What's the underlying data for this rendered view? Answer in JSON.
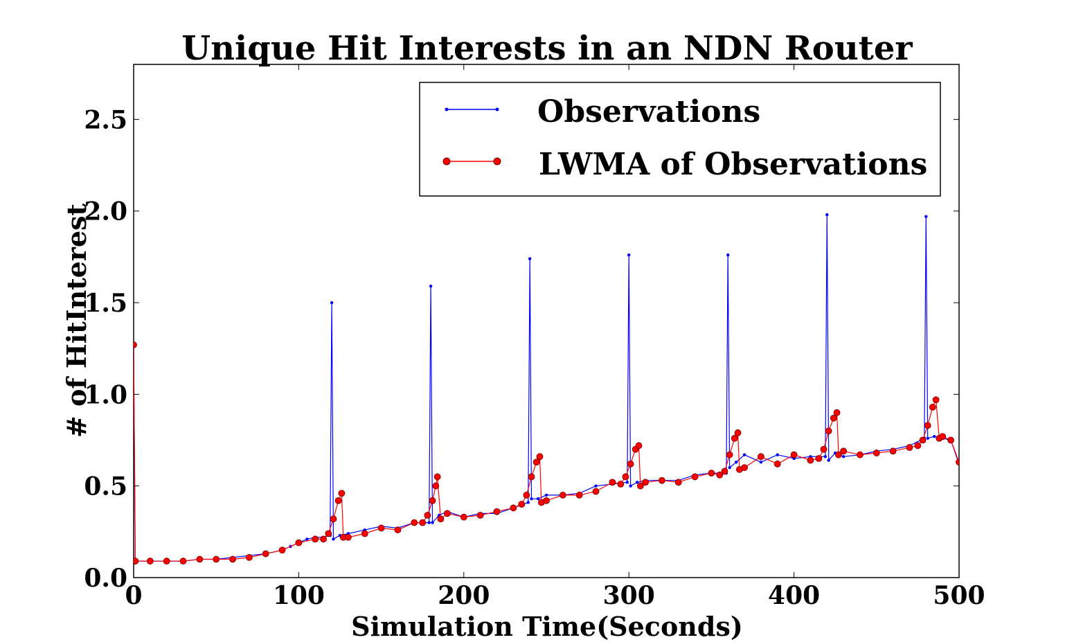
{
  "chart_data": {
    "type": "line",
    "title": "Unique Hit Interests in an NDN Router",
    "xlabel": "Simulation Time(Seconds)",
    "ylabel": "# of HitInterest",
    "xlim": [
      0,
      500
    ],
    "ylim": [
      0,
      2.8
    ],
    "xticks": [
      0,
      100,
      200,
      300,
      400,
      500
    ],
    "yticks": [
      0.0,
      0.5,
      1.0,
      1.5,
      2.0,
      2.5
    ],
    "xtick_labels": [
      "0",
      "100",
      "200",
      "300",
      "400",
      "500"
    ],
    "ytick_labels": [
      "0.0",
      "0.5",
      "1.0",
      "1.5",
      "2.0",
      "2.5"
    ],
    "grid": false,
    "legend_position": "top-right",
    "series": [
      {
        "name": "Observations",
        "color": "#0000ff",
        "marker": "dot",
        "x": [
          0,
          1,
          10,
          20,
          30,
          40,
          50,
          60,
          70,
          80,
          90,
          95,
          100,
          105,
          110,
          115,
          119,
          120,
          121,
          125,
          130,
          140,
          150,
          160,
          170,
          179,
          180,
          181,
          185,
          190,
          200,
          210,
          220,
          230,
          239,
          240,
          241,
          245,
          250,
          260,
          270,
          280,
          290,
          299,
          300,
          301,
          305,
          310,
          320,
          330,
          340,
          350,
          359,
          360,
          361,
          365,
          370,
          380,
          390,
          400,
          410,
          419,
          420,
          421,
          425,
          430,
          440,
          450,
          460,
          470,
          479,
          480,
          481,
          485,
          490,
          495,
          500
        ],
        "y": [
          1.27,
          0.09,
          0.09,
          0.09,
          0.09,
          0.1,
          0.1,
          0.11,
          0.12,
          0.13,
          0.15,
          0.17,
          0.19,
          0.21,
          0.22,
          0.22,
          0.23,
          1.5,
          0.21,
          0.23,
          0.24,
          0.26,
          0.28,
          0.27,
          0.3,
          0.3,
          1.59,
          0.3,
          0.34,
          0.36,
          0.33,
          0.35,
          0.35,
          0.38,
          0.41,
          1.74,
          0.43,
          0.43,
          0.45,
          0.45,
          0.46,
          0.5,
          0.51,
          0.52,
          1.76,
          0.5,
          0.52,
          0.53,
          0.53,
          0.53,
          0.56,
          0.57,
          0.57,
          1.76,
          0.6,
          0.63,
          0.67,
          0.63,
          0.67,
          0.65,
          0.66,
          0.66,
          1.98,
          0.64,
          0.68,
          0.66,
          0.67,
          0.69,
          0.7,
          0.72,
          0.76,
          1.97,
          0.76,
          0.77,
          0.76,
          0.75,
          0.62
        ]
      },
      {
        "name": "LWMA of Observations",
        "color": "#ff0000",
        "marker": "circle",
        "x": [
          0,
          1,
          10,
          20,
          30,
          40,
          50,
          60,
          70,
          80,
          90,
          100,
          110,
          115,
          118,
          121,
          124,
          126,
          127,
          130,
          140,
          150,
          160,
          170,
          175,
          178,
          181,
          183,
          184,
          186,
          190,
          200,
          210,
          220,
          230,
          235,
          238,
          241,
          244,
          246,
          247,
          250,
          260,
          270,
          280,
          290,
          295,
          298,
          301,
          304,
          306,
          307,
          310,
          320,
          330,
          340,
          350,
          355,
          358,
          361,
          364,
          366,
          367,
          370,
          380,
          390,
          400,
          410,
          415,
          418,
          421,
          424,
          426,
          427,
          430,
          440,
          450,
          460,
          470,
          475,
          478,
          481,
          484,
          486,
          488,
          490,
          495,
          500
        ],
        "y": [
          1.27,
          0.09,
          0.09,
          0.09,
          0.09,
          0.1,
          0.1,
          0.1,
          0.11,
          0.13,
          0.15,
          0.19,
          0.21,
          0.21,
          0.24,
          0.32,
          0.42,
          0.46,
          0.22,
          0.22,
          0.24,
          0.27,
          0.26,
          0.3,
          0.3,
          0.34,
          0.42,
          0.5,
          0.55,
          0.32,
          0.35,
          0.33,
          0.34,
          0.36,
          0.38,
          0.4,
          0.45,
          0.55,
          0.63,
          0.66,
          0.41,
          0.42,
          0.45,
          0.45,
          0.47,
          0.52,
          0.51,
          0.55,
          0.62,
          0.7,
          0.72,
          0.5,
          0.52,
          0.53,
          0.52,
          0.55,
          0.57,
          0.56,
          0.58,
          0.67,
          0.76,
          0.79,
          0.59,
          0.6,
          0.66,
          0.62,
          0.67,
          0.64,
          0.65,
          0.7,
          0.8,
          0.87,
          0.9,
          0.67,
          0.69,
          0.67,
          0.68,
          0.69,
          0.71,
          0.72,
          0.75,
          0.83,
          0.93,
          0.97,
          0.76,
          0.77,
          0.75,
          0.63
        ]
      }
    ]
  }
}
